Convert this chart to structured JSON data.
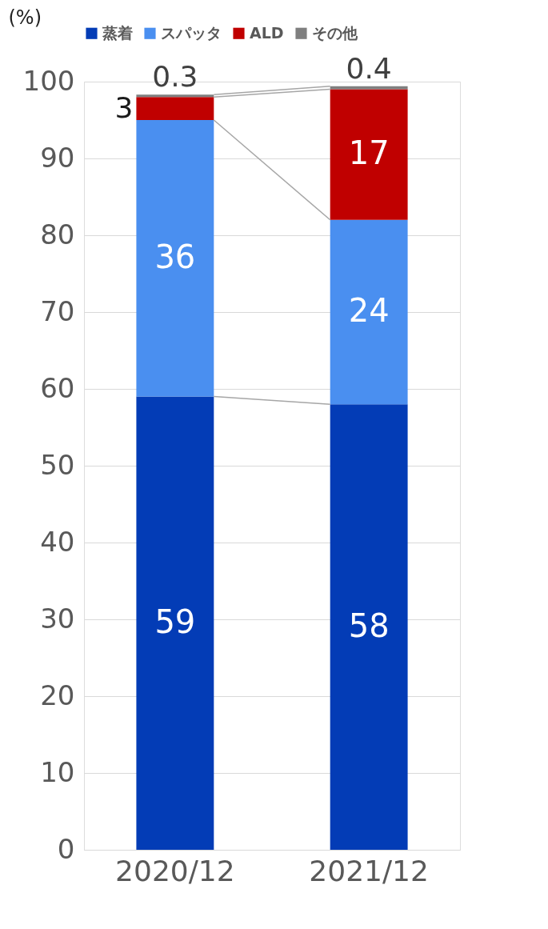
{
  "chart_data": {
    "type": "bar",
    "stacked": true,
    "ylabel": "(%)",
    "categories": [
      "2020/12",
      "2021/12"
    ],
    "series": [
      {
        "name": "蒸着",
        "color": "#033cb6",
        "values": [
          59,
          58
        ]
      },
      {
        "name": "スパッタ",
        "color": "#4a8ff0",
        "values": [
          36,
          24
        ]
      },
      {
        "name": "ALD",
        "color": "#c00000",
        "values": [
          3,
          17
        ]
      },
      {
        "name": "その他",
        "color": "#7f7f7f",
        "values": [
          0.3,
          0.4
        ]
      }
    ],
    "ylim": [
      0,
      100
    ],
    "yticks": [
      0,
      10,
      20,
      30,
      40,
      50,
      60,
      70,
      80,
      90,
      100
    ],
    "grid": "y",
    "legend": "top",
    "data_labels": true
  }
}
